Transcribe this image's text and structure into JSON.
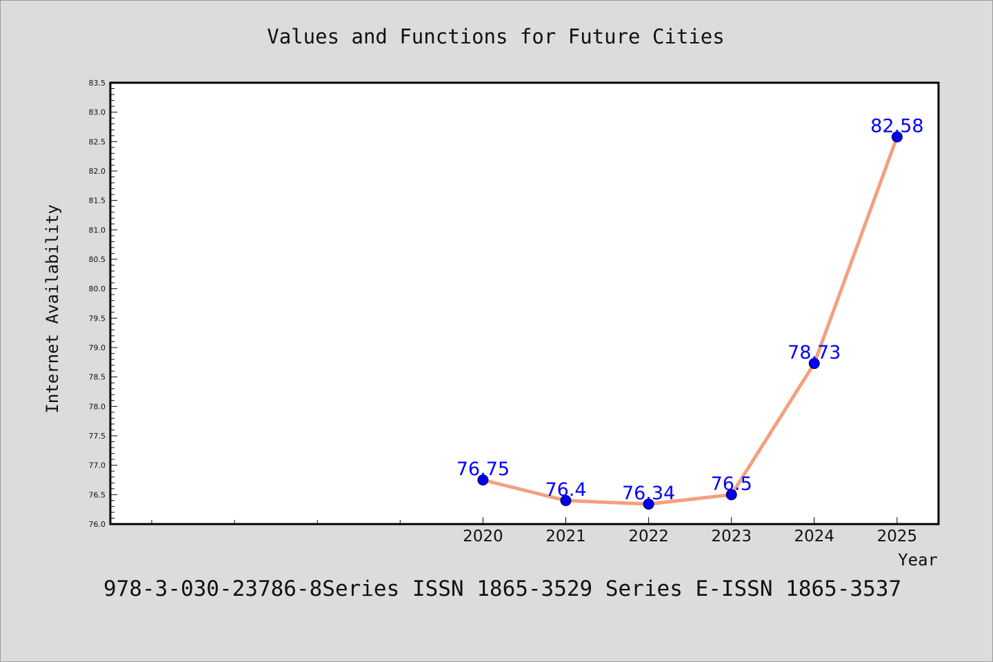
{
  "chart_data": {
    "type": "line",
    "title": "Values and Functions for Future Cities",
    "xlabel": "Year",
    "ylabel": "Internet Availability",
    "x": [
      "2020",
      "2021",
      "2022",
      "2023",
      "2024",
      "2025"
    ],
    "series": [
      {
        "values": [
          76.75,
          76.4,
          76.34,
          76.5,
          78.73,
          82.58
        ]
      }
    ],
    "data_labels": [
      "76.75",
      "76.4",
      "76.34",
      "76.5",
      "78.73",
      "82.58"
    ],
    "ylim": [
      76.0,
      83.5
    ],
    "yticks": [
      "76.0",
      "76.5",
      "77.0",
      "77.5",
      "78.0",
      "78.5",
      "79.0",
      "79.5",
      "80.0",
      "80.5",
      "81.0",
      "81.5",
      "82.0",
      "82.5",
      "83.0",
      "83.5"
    ],
    "grid": false,
    "line_color": "#f4a07e",
    "marker_color": "#0000ee",
    "label_color": "#0000ff",
    "caption": "978-3-030-23786-8Series ISSN 1865-3529 Series E-ISSN 1865-3537"
  }
}
